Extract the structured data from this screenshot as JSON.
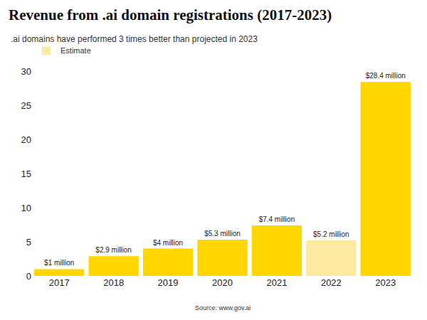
{
  "chart_data": {
    "type": "bar",
    "title": "Revenue from .ai domain registrations (2017-2023)",
    "subtitle": ".ai domains have performed 3 times better than projected in 2023",
    "source": "Source: www.gov.ai",
    "categories": [
      "2017",
      "2018",
      "2019",
      "2020",
      "2021",
      "2022",
      "2023"
    ],
    "series": [
      {
        "color": "#ffd600",
        "values": [
          1,
          2.9,
          4,
          5.3,
          7.4,
          null,
          28.4
        ],
        "value_labels": [
          "$1 million",
          "$2.9 million",
          "$4 million",
          "$5.3 million",
          "$7.4 million",
          null,
          "$28.4 million"
        ]
      },
      {
        "name": "Estimate",
        "color": "#fde9a0",
        "values": [
          null,
          null,
          null,
          null,
          null,
          5.2,
          null
        ],
        "value_labels": [
          null,
          null,
          null,
          null,
          null,
          "$5.2 million",
          null
        ]
      }
    ],
    "ylim": [
      0,
      30
    ],
    "yticks": [
      0,
      5,
      10,
      15,
      20,
      25,
      30
    ],
    "grid": false,
    "legend": "top-left",
    "data_labels": true
  }
}
